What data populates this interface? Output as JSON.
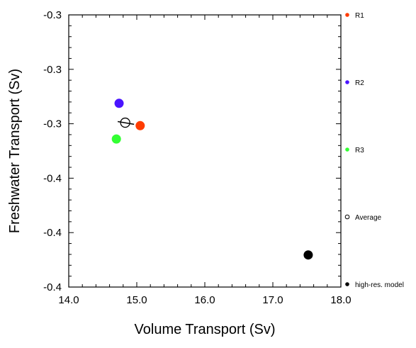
{
  "chart_data": {
    "type": "scatter",
    "title": "",
    "xlabel": "Volume Transport (Sv)",
    "ylabel": "Freshwater Transport (Sv)",
    "xlim": [
      14.0,
      18.0
    ],
    "ylim": [
      -0.4,
      -0.3
    ],
    "x_ticks": [
      14.0,
      15.0,
      16.0,
      17.0,
      18.0
    ],
    "x_tick_labels": [
      "14.0",
      "15.0",
      "16.0",
      "17.0",
      "18.0"
    ],
    "y_ticks": [
      -0.3,
      -0.32,
      -0.34,
      -0.36,
      -0.38,
      -0.4
    ],
    "y_tick_labels": [
      "-0.3",
      "-0.3",
      "-0.3",
      "-0.4",
      "-0.4",
      "-0.4"
    ],
    "grid": false,
    "legend_position": "right",
    "series": [
      {
        "name": "R1",
        "color": "#ff3c00",
        "marker": "filled-circle",
        "x": [
          15.05
        ],
        "y": [
          -0.3407
        ]
      },
      {
        "name": "R2",
        "color": "#4a14ff",
        "marker": "filled-circle",
        "x": [
          14.74
        ],
        "y": [
          -0.3325
        ]
      },
      {
        "name": "R3",
        "color": "#33ff33",
        "marker": "filled-circle",
        "x": [
          14.7
        ],
        "y": [
          -0.3456
        ]
      },
      {
        "name": "Average",
        "color": "#000000",
        "marker": "hollow-circle",
        "x": [
          14.83
        ],
        "y": [
          -0.3396
        ]
      },
      {
        "name": "high-res. model",
        "color": "#000000",
        "marker": "filled-circle",
        "x": [
          17.52
        ],
        "y": [
          -0.3882
        ]
      }
    ],
    "error_bars": [
      {
        "series": "Average",
        "x_from": 14.72,
        "x_to": 14.96,
        "y_from": -0.3392,
        "y_to": -0.3402
      }
    ],
    "legend": [
      {
        "label": "R1",
        "color": "#ff3c00",
        "marker": "filled-circle"
      },
      {
        "label": "R2",
        "color": "#4a14ff",
        "marker": "filled-circle"
      },
      {
        "label": "R3",
        "color": "#33ff33",
        "marker": "filled-circle"
      },
      {
        "label": "Average",
        "color": "#000000",
        "marker": "hollow-circle"
      },
      {
        "label": "high-res. model",
        "color": "#000000",
        "marker": "filled-circle"
      }
    ]
  }
}
